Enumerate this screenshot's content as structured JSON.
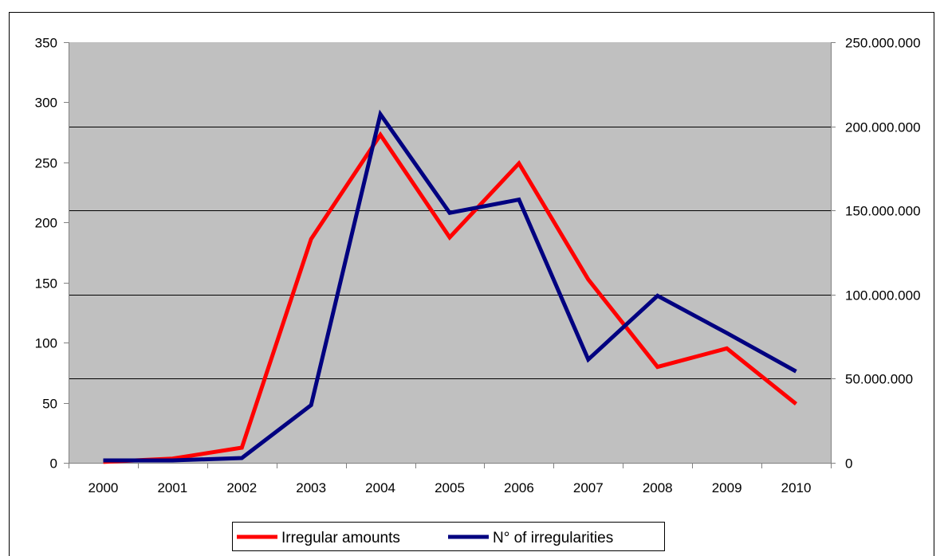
{
  "colors": {
    "plot_background": "#c0c0c0",
    "gridline": "#000000",
    "axis": "#808080",
    "frame": "#000000"
  },
  "chart_data": {
    "type": "line",
    "categories": [
      "2000",
      "2001",
      "2002",
      "2003",
      "2004",
      "2005",
      "2006",
      "2007",
      "2008",
      "2009",
      "2010"
    ],
    "y_left": {
      "range": [
        0,
        350
      ],
      "ticks": [
        0,
        50,
        100,
        150,
        200,
        250,
        300,
        350
      ],
      "tick_labels": [
        "0",
        "50",
        "100",
        "150",
        "200",
        "250",
        "300",
        "350"
      ]
    },
    "y_right": {
      "range": [
        0,
        250000000
      ],
      "ticks": [
        0,
        50000000,
        100000000,
        150000000,
        200000000,
        250000000
      ],
      "tick_labels": [
        "0",
        "50.000.000",
        "100.000.000",
        "150.000.000",
        "200.000.000",
        "250.000.000"
      ]
    },
    "grid": true,
    "legend_position": "bottom",
    "series": [
      {
        "name": "Irregular amounts",
        "axis": "right",
        "color": "#ff0000",
        "values": [
          500000,
          2500000,
          9000000,
          133000000,
          195000000,
          134000000,
          178000000,
          109000000,
          57000000,
          68000000,
          35000000
        ]
      },
      {
        "name": "N° of irregularities",
        "axis": "left",
        "color": "#000080",
        "values": [
          2,
          2,
          4,
          48,
          290,
          208,
          219,
          86,
          139,
          108,
          76
        ]
      }
    ]
  }
}
